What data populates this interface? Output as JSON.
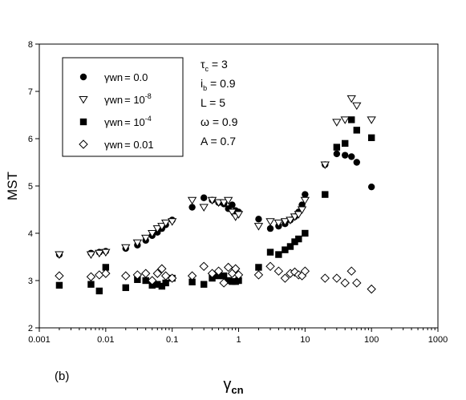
{
  "chart_data": {
    "type": "scatter",
    "panel_label": "(b)",
    "xlabel": {
      "main": "γ",
      "sub": "cn"
    },
    "ylabel": "MST",
    "xscale": "log",
    "xlim": [
      0.001,
      1000
    ],
    "ylim": [
      2,
      8
    ],
    "x_ticks": [
      {
        "value": 0.001,
        "label": "0.001"
      },
      {
        "value": 0.01,
        "label": "0.01"
      },
      {
        "value": 0.1,
        "label": "0.1"
      },
      {
        "value": 1,
        "label": "1"
      },
      {
        "value": 10,
        "label": "10"
      },
      {
        "value": 100,
        "label": "100"
      },
      {
        "value": 1000,
        "label": "1000"
      }
    ],
    "y_ticks": [
      {
        "value": 2,
        "label": "2"
      },
      {
        "value": 3,
        "label": "3"
      },
      {
        "value": 4,
        "label": "4"
      },
      {
        "value": 5,
        "label": "5"
      },
      {
        "value": 6,
        "label": "6"
      },
      {
        "value": 7,
        "label": "7"
      },
      {
        "value": 8,
        "label": "8"
      }
    ],
    "grid": false,
    "legend_position": "top-left",
    "parameters": [
      {
        "symbol": "τ",
        "sub": "c",
        "value": " = 3"
      },
      {
        "symbol": "i",
        "sub": "b",
        "value": " = 0.9"
      },
      {
        "symbol": "L",
        "sub": "",
        "value": " = 5"
      },
      {
        "symbol": "ω",
        "sub": "",
        "value": " = 0.9"
      },
      {
        "symbol": "A",
        "sub": "",
        "value": " = 0.7"
      }
    ],
    "series": [
      {
        "legend_prefix": "γwn",
        "legend_value": "= 0.0",
        "legend_sup": "",
        "marker": "circle-filled",
        "points": [
          [
            0.002,
            3.55
          ],
          [
            0.006,
            3.58
          ],
          [
            0.008,
            3.6
          ],
          [
            0.01,
            3.62
          ],
          [
            0.02,
            3.68
          ],
          [
            0.03,
            3.75
          ],
          [
            0.04,
            3.85
          ],
          [
            0.05,
            3.95
          ],
          [
            0.06,
            4.02
          ],
          [
            0.07,
            4.1
          ],
          [
            0.08,
            4.18
          ],
          [
            0.1,
            4.28
          ],
          [
            0.2,
            4.55
          ],
          [
            0.3,
            4.75
          ],
          [
            0.4,
            4.7
          ],
          [
            0.5,
            4.65
          ],
          [
            0.6,
            4.62
          ],
          [
            0.7,
            4.52
          ],
          [
            0.8,
            4.6
          ],
          [
            0.9,
            4.48
          ],
          [
            1.0,
            4.45
          ],
          [
            2,
            4.3
          ],
          [
            3,
            4.1
          ],
          [
            4,
            4.15
          ],
          [
            5,
            4.2
          ],
          [
            6,
            4.28
          ],
          [
            7,
            4.35
          ],
          [
            8,
            4.45
          ],
          [
            9,
            4.6
          ],
          [
            10,
            4.82
          ],
          [
            20,
            5.45
          ],
          [
            30,
            5.68
          ],
          [
            40,
            5.65
          ],
          [
            50,
            5.62
          ],
          [
            60,
            5.5
          ],
          [
            100,
            4.98
          ]
        ]
      },
      {
        "legend_prefix": "γwn",
        "legend_value": "= 10",
        "legend_sup": "-8",
        "marker": "triangle-down-open",
        "points": [
          [
            0.002,
            3.55
          ],
          [
            0.006,
            3.55
          ],
          [
            0.008,
            3.58
          ],
          [
            0.01,
            3.6
          ],
          [
            0.02,
            3.7
          ],
          [
            0.03,
            3.8
          ],
          [
            0.04,
            3.9
          ],
          [
            0.05,
            4.0
          ],
          [
            0.06,
            4.1
          ],
          [
            0.07,
            4.15
          ],
          [
            0.08,
            4.22
          ],
          [
            0.1,
            4.25
          ],
          [
            0.2,
            4.7
          ],
          [
            0.3,
            4.55
          ],
          [
            0.4,
            4.7
          ],
          [
            0.5,
            4.65
          ],
          [
            0.6,
            4.65
          ],
          [
            0.7,
            4.7
          ],
          [
            0.8,
            4.45
          ],
          [
            0.9,
            4.35
          ],
          [
            1.0,
            4.4
          ],
          [
            2,
            4.15
          ],
          [
            3,
            4.25
          ],
          [
            4,
            4.22
          ],
          [
            5,
            4.25
          ],
          [
            6,
            4.28
          ],
          [
            7,
            4.35
          ],
          [
            8,
            4.4
          ],
          [
            9,
            4.5
          ],
          [
            10,
            4.7
          ],
          [
            20,
            5.45
          ],
          [
            30,
            6.35
          ],
          [
            40,
            6.4
          ],
          [
            50,
            6.85
          ],
          [
            60,
            6.7
          ],
          [
            100,
            6.4
          ]
        ]
      },
      {
        "legend_prefix": "γwn",
        "legend_value": "= 10",
        "legend_sup": "-4",
        "marker": "square-filled",
        "points": [
          [
            0.002,
            2.9
          ],
          [
            0.006,
            2.92
          ],
          [
            0.008,
            2.78
          ],
          [
            0.01,
            3.28
          ],
          [
            0.02,
            2.85
          ],
          [
            0.03,
            3.02
          ],
          [
            0.04,
            3.0
          ],
          [
            0.05,
            2.9
          ],
          [
            0.06,
            2.92
          ],
          [
            0.07,
            2.88
          ],
          [
            0.08,
            2.95
          ],
          [
            0.1,
            3.05
          ],
          [
            0.2,
            2.97
          ],
          [
            0.3,
            2.92
          ],
          [
            0.4,
            3.05
          ],
          [
            0.5,
            3.1
          ],
          [
            0.6,
            3.1
          ],
          [
            0.7,
            3.0
          ],
          [
            0.8,
            2.98
          ],
          [
            0.9,
            2.98
          ],
          [
            1.0,
            3.0
          ],
          [
            2,
            3.28
          ],
          [
            3,
            3.6
          ],
          [
            4,
            3.55
          ],
          [
            5,
            3.65
          ],
          [
            6,
            3.72
          ],
          [
            7,
            3.82
          ],
          [
            8,
            3.88
          ],
          [
            10,
            4.0
          ],
          [
            20,
            4.82
          ],
          [
            30,
            5.82
          ],
          [
            40,
            5.9
          ],
          [
            50,
            6.4
          ],
          [
            60,
            6.18
          ],
          [
            100,
            6.02
          ]
        ]
      },
      {
        "legend_prefix": "γwn",
        "legend_value": "= 0.01",
        "legend_sup": "",
        "marker": "diamond-open",
        "points": [
          [
            0.002,
            3.1
          ],
          [
            0.006,
            3.08
          ],
          [
            0.008,
            3.12
          ],
          [
            0.01,
            3.15
          ],
          [
            0.02,
            3.1
          ],
          [
            0.03,
            3.12
          ],
          [
            0.04,
            3.15
          ],
          [
            0.05,
            3.0
          ],
          [
            0.06,
            3.15
          ],
          [
            0.07,
            3.25
          ],
          [
            0.08,
            3.1
          ],
          [
            0.1,
            3.05
          ],
          [
            0.2,
            3.1
          ],
          [
            0.3,
            3.3
          ],
          [
            0.4,
            3.15
          ],
          [
            0.5,
            3.2
          ],
          [
            0.6,
            2.95
          ],
          [
            0.7,
            3.28
          ],
          [
            0.8,
            3.15
          ],
          [
            0.9,
            3.25
          ],
          [
            1.0,
            3.12
          ],
          [
            2,
            3.12
          ],
          [
            3,
            3.3
          ],
          [
            4,
            3.2
          ],
          [
            5,
            3.05
          ],
          [
            6,
            3.15
          ],
          [
            7,
            3.18
          ],
          [
            8,
            3.12
          ],
          [
            9,
            3.1
          ],
          [
            10,
            3.2
          ],
          [
            20,
            3.05
          ],
          [
            30,
            3.05
          ],
          [
            40,
            2.95
          ],
          [
            50,
            3.2
          ],
          [
            60,
            2.95
          ],
          [
            100,
            2.82
          ]
        ]
      }
    ]
  }
}
